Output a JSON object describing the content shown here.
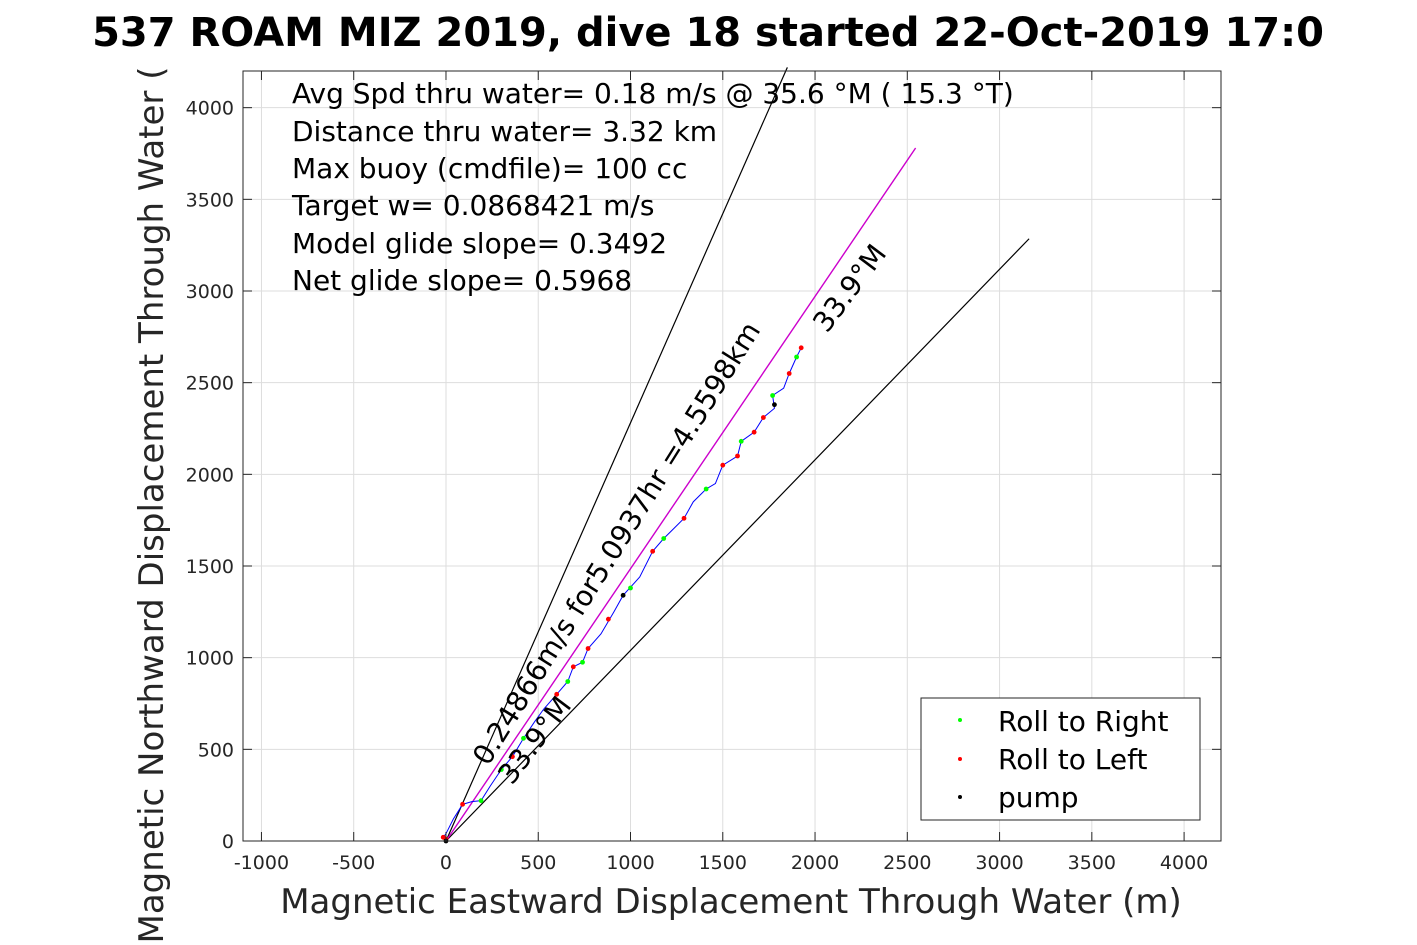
{
  "chart_data": {
    "type": "scatter",
    "title": "537 ROAM MIZ 2019, dive 18 started 22-Oct-2019 17:0",
    "xlabel": "Magnetic Eastward Displacement Through Water (m)",
    "ylabel": "Magnetic Northward Displacement Through Water (",
    "xlim": [
      -1100,
      4200
    ],
    "ylim": [
      0,
      4200
    ],
    "x_ticks": [
      -1000,
      -500,
      0,
      500,
      1000,
      1500,
      2000,
      2500,
      3000,
      3500,
      4000
    ],
    "x_tick_labels": [
      "-1000",
      "-500",
      "0",
      "500",
      "1000",
      "1500",
      "2000",
      "2500",
      "3000",
      "3500",
      "4000"
    ],
    "y_ticks": [
      0,
      500,
      1000,
      1500,
      2000,
      2500,
      3000,
      3500,
      4000
    ],
    "y_tick_labels": [
      "0",
      "500",
      "1000",
      "1500",
      "2000",
      "2500",
      "3000",
      "3500",
      "4000"
    ],
    "grid": true,
    "legend_position": "bottom-right",
    "colors": {
      "track": "#0000ff",
      "roll_right": "#00ff00",
      "roll_left": "#ff0000",
      "pump": "#000000",
      "heading_line": "#cc00cc",
      "cone_lines": "#000000"
    },
    "annotations": [
      "Avg Spd thru water=  0.18 m/s @  35.6 °M ( 15.3 °T)",
      "Distance thru water=  3.32 km",
      "Max buoy (cmdfile)= 100 cc",
      "Target w= 0.0868421 m/s",
      "Model glide slope= 0.3492",
      "Net glide slope= 0.5968"
    ],
    "rotated_labels": {
      "speed_line": "0.24866m/s for5.0937hr =4.5598km",
      "heading_upper": "33.9°M",
      "heading_lower": "33.9°M"
    },
    "lines": {
      "heading": [
        [
          0,
          0
        ],
        [
          2545,
          3780
        ]
      ],
      "cone_left": [
        [
          0,
          0
        ],
        [
          1850,
          4220
        ]
      ],
      "cone_right": [
        [
          0,
          0
        ],
        [
          3160,
          3285
        ]
      ]
    },
    "track": [
      [
        0,
        0
      ],
      [
        -15,
        20
      ],
      [
        0,
        40
      ],
      [
        40,
        120
      ],
      [
        90,
        200
      ],
      [
        140,
        215
      ],
      [
        190,
        220
      ],
      [
        240,
        300
      ],
      [
        300,
        390
      ],
      [
        360,
        460
      ],
      [
        420,
        560
      ],
      [
        480,
        650
      ],
      [
        530,
        720
      ],
      [
        600,
        800
      ],
      [
        660,
        870
      ],
      [
        690,
        950
      ],
      [
        740,
        975
      ],
      [
        770,
        1050
      ],
      [
        840,
        1130
      ],
      [
        910,
        1250
      ],
      [
        960,
        1340
      ],
      [
        1050,
        1440
      ],
      [
        1120,
        1580
      ],
      [
        1180,
        1650
      ],
      [
        1230,
        1700
      ],
      [
        1290,
        1760
      ],
      [
        1340,
        1850
      ],
      [
        1410,
        1920
      ],
      [
        1460,
        1950
      ],
      [
        1500,
        2050
      ],
      [
        1580,
        2100
      ],
      [
        1600,
        2180
      ],
      [
        1670,
        2230
      ],
      [
        1720,
        2310
      ],
      [
        1780,
        2360
      ],
      [
        1770,
        2430
      ],
      [
        1830,
        2470
      ],
      [
        1860,
        2550
      ],
      [
        1900,
        2640
      ],
      [
        1925,
        2690
      ]
    ],
    "series": [
      {
        "name": "Roll to Right",
        "points": [
          [
            190,
            220
          ],
          [
            300,
            390
          ],
          [
            420,
            560
          ],
          [
            660,
            870
          ],
          [
            740,
            975
          ],
          [
            1000,
            1380
          ],
          [
            1180,
            1650
          ],
          [
            1410,
            1920
          ],
          [
            1600,
            2180
          ],
          [
            1770,
            2430
          ],
          [
            1900,
            2640
          ]
        ]
      },
      {
        "name": "Roll to Left",
        "points": [
          [
            -15,
            20
          ],
          [
            0,
            10
          ],
          [
            90,
            200
          ],
          [
            360,
            460
          ],
          [
            600,
            800
          ],
          [
            690,
            950
          ],
          [
            770,
            1050
          ],
          [
            880,
            1210
          ],
          [
            1120,
            1580
          ],
          [
            1290,
            1760
          ],
          [
            1500,
            2050
          ],
          [
            1580,
            2100
          ],
          [
            1670,
            2230
          ],
          [
            1720,
            2310
          ],
          [
            1860,
            2550
          ],
          [
            1925,
            2690
          ]
        ]
      },
      {
        "name": "pump",
        "points": [
          [
            0,
            0
          ],
          [
            960,
            1340
          ],
          [
            1780,
            2380
          ]
        ]
      }
    ]
  }
}
